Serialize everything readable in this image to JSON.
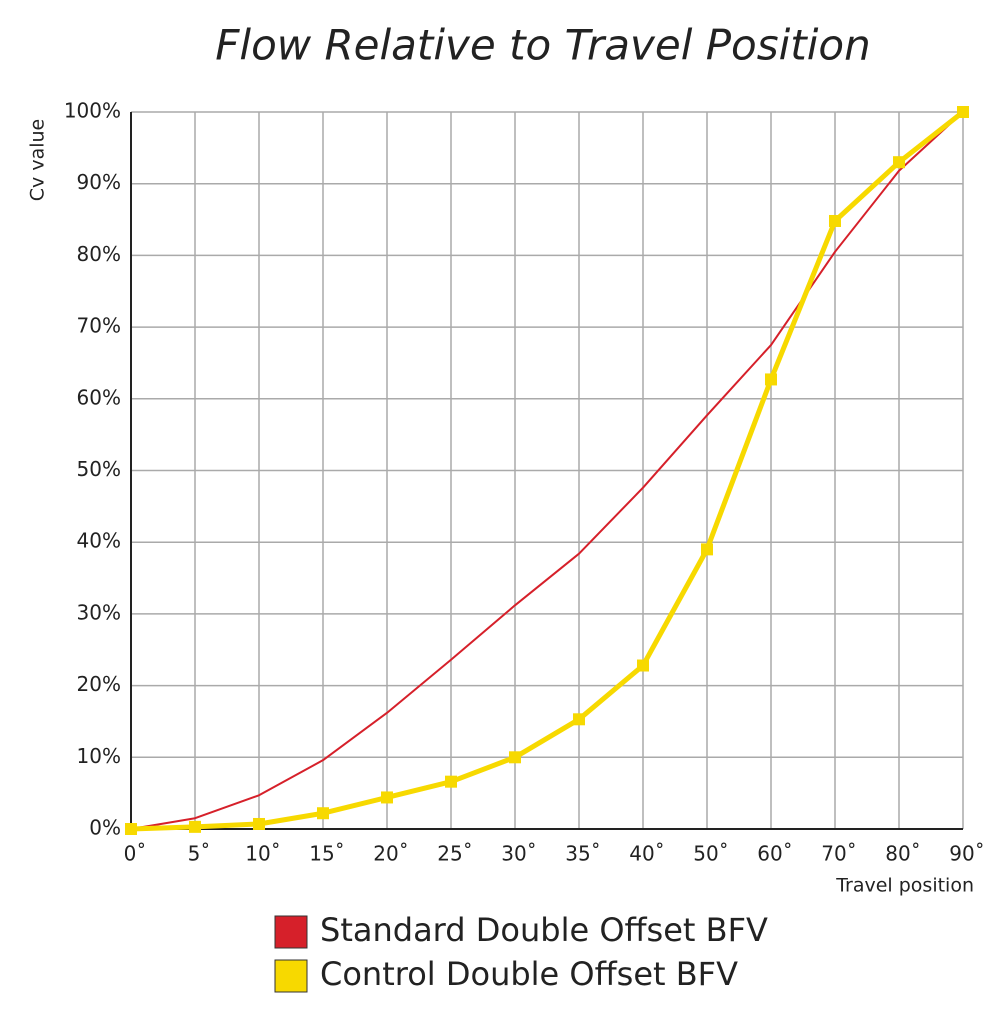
{
  "chart_data": {
    "type": "line",
    "title": "Flow Relative to Travel Position",
    "y_label": "Cv value",
    "x_label": "Travel position",
    "categories": [
      "0˚",
      "5˚",
      "10˚",
      "15˚",
      "20˚",
      "25˚",
      "30˚",
      "35˚",
      "40˚",
      "50˚",
      "60˚",
      "70˚",
      "80˚",
      "90˚"
    ],
    "series": [
      {
        "name": "Standard Double Offset BFV",
        "color": "#d6202a",
        "markers": false,
        "values": [
          0,
          1.5,
          4.7,
          9.6,
          16.2,
          23.6,
          31.2,
          38.4,
          47.6,
          57.7,
          67.5,
          80.5,
          91.8,
          100
        ]
      },
      {
        "name": "Control Double Offset BFV",
        "color": "#f7d900",
        "markers": true,
        "values": [
          0,
          0.3,
          0.7,
          2.2,
          4.4,
          6.6,
          10,
          15.3,
          22.8,
          39,
          62.7,
          84.8,
          93,
          100
        ]
      }
    ],
    "ylim": [
      0,
      100
    ],
    "yticks": [
      {
        "value": 0,
        "label": "0%"
      },
      {
        "value": 10,
        "label": "10%"
      },
      {
        "value": 20,
        "label": "20%"
      },
      {
        "value": 30,
        "label": "30%"
      },
      {
        "value": 40,
        "label": "40%"
      },
      {
        "value": 50,
        "label": "50%"
      },
      {
        "value": 60,
        "label": "60%"
      },
      {
        "value": 70,
        "label": "70%"
      },
      {
        "value": 80,
        "label": "80%"
      },
      {
        "value": 90,
        "label": "90%"
      },
      {
        "value": 100,
        "label": "100%"
      }
    ],
    "grid": true
  }
}
